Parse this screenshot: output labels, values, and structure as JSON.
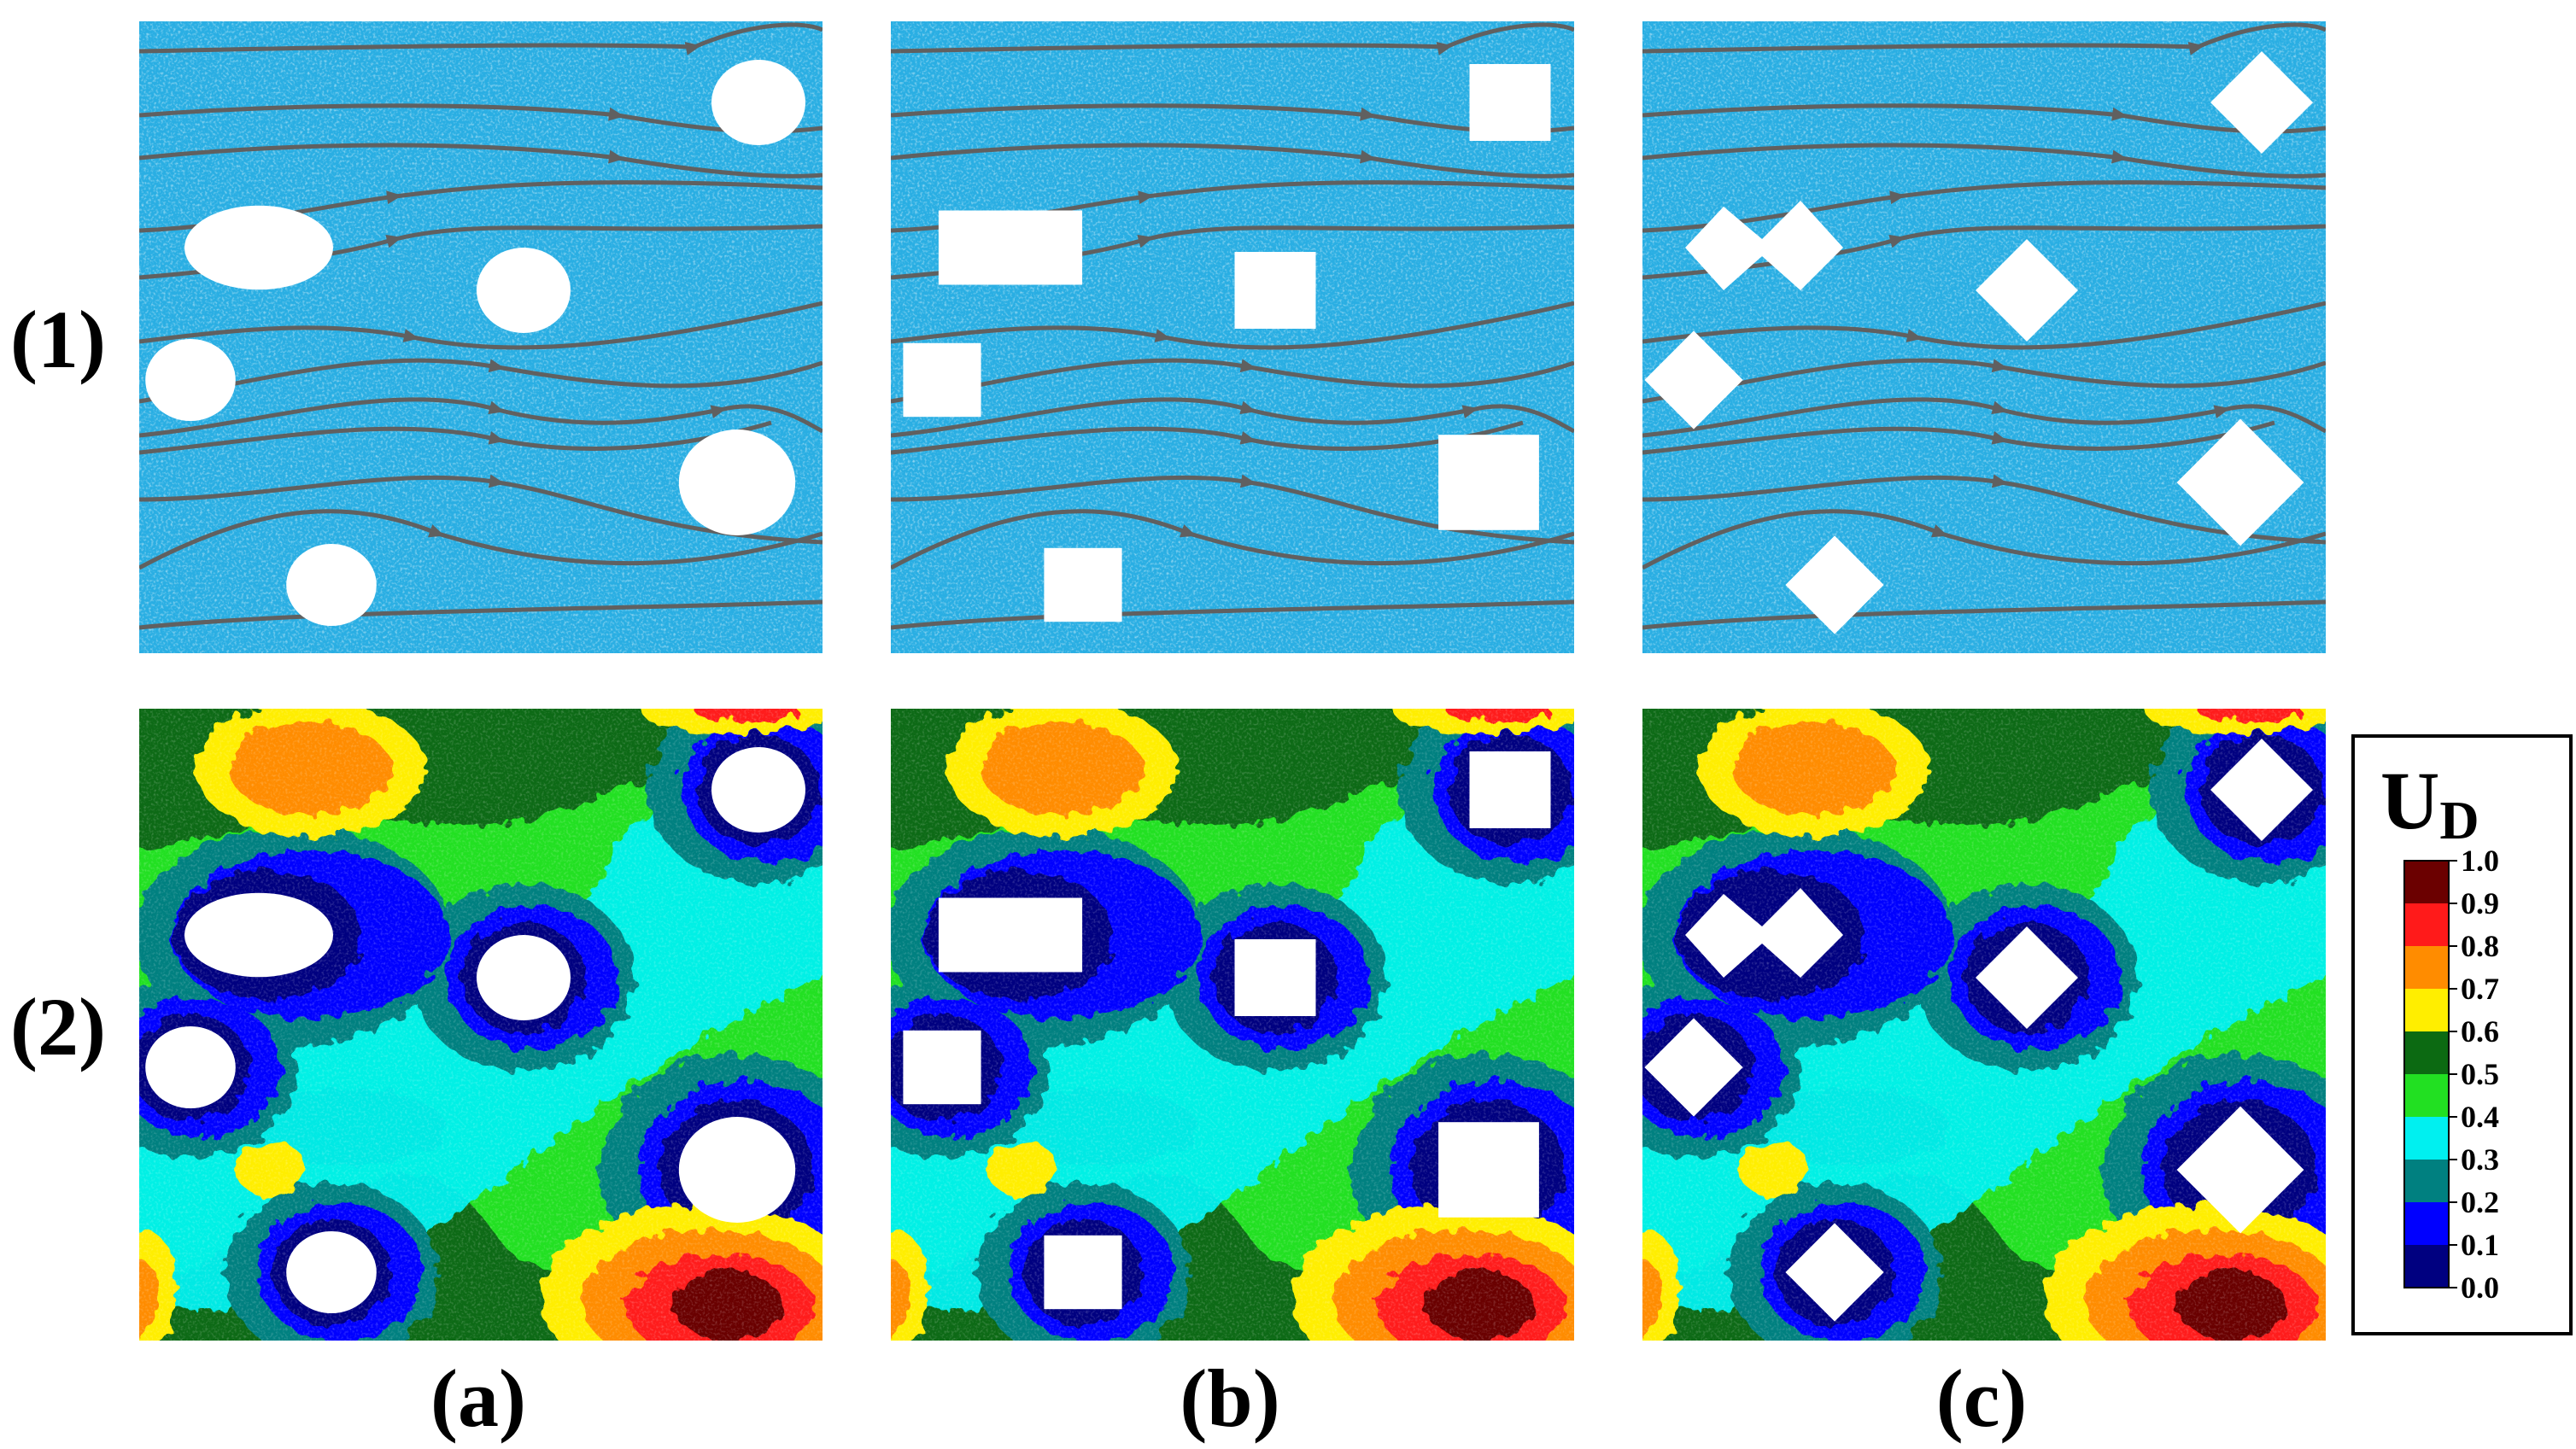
{
  "row_labels": [
    "(1)",
    "(2)"
  ],
  "col_labels": [
    "(a)",
    "(b)",
    "(c)"
  ],
  "legend": {
    "title_main": "U",
    "title_sub": "D",
    "ticks": [
      "1.0",
      "0.9",
      "0.8",
      "0.7",
      "0.6",
      "0.5",
      "0.4",
      "0.3",
      "0.2",
      "0.1",
      "0.0"
    ],
    "colors": [
      "#6b0000",
      "#ff1a1a",
      "#ff8c00",
      "#ffee00",
      "#0c6a12",
      "#22e022",
      "#00f0f0",
      "#008080",
      "#0000ff",
      "#000080"
    ]
  },
  "colors": {
    "fluid": "#29aee3",
    "streamline": "#606060",
    "obstacle": "#ffffff"
  },
  "obstacle_shapes": [
    "circle",
    "square",
    "diamond"
  ]
}
